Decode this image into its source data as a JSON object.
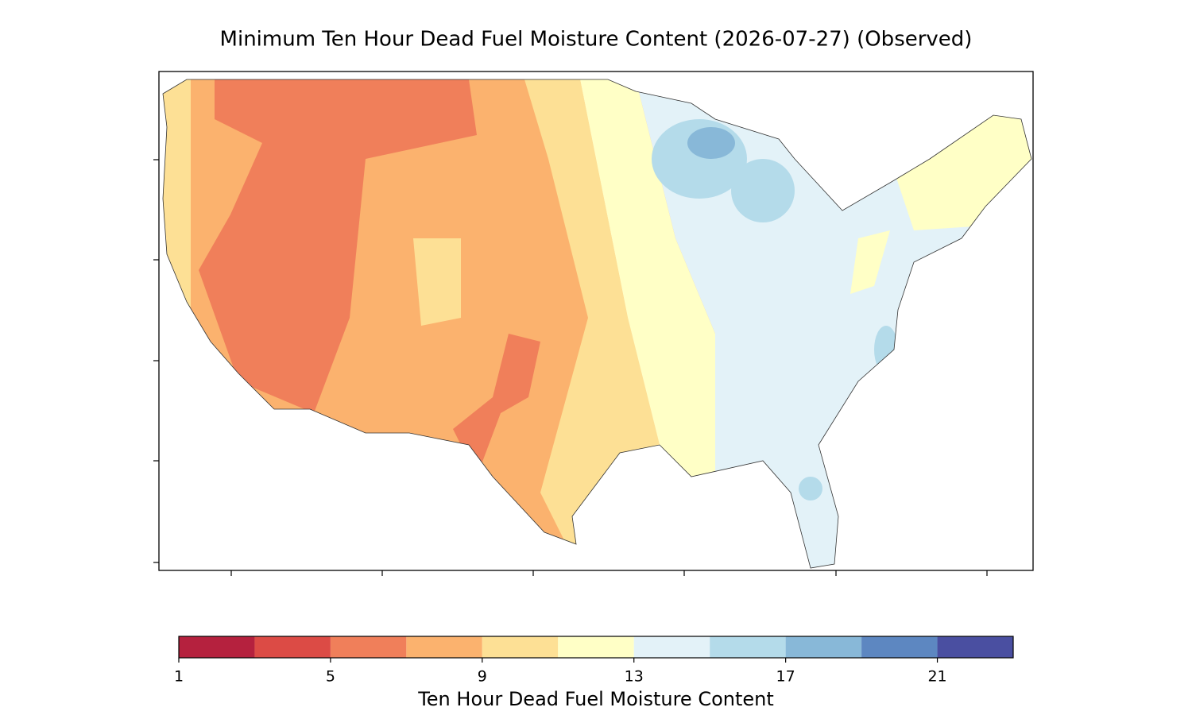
{
  "title": "Minimum Ten Hour Dead Fuel Moisture Content (2026-07-27) (Observed)",
  "colorbar": {
    "bounds": [
      1,
      3,
      5,
      7,
      9,
      11,
      13,
      15,
      17,
      19,
      21,
      23
    ],
    "colors": [
      "#b5213e",
      "#dc4b45",
      "#f07f5a",
      "#fbb26e",
      "#fde095",
      "#ffffc6",
      "#e3f2f8",
      "#b4dbea",
      "#88b8d8",
      "#5d87c1",
      "#4a4fa1"
    ],
    "ticks": [
      1,
      5,
      9,
      13,
      17,
      21
    ],
    "label": "Ten Hour Dead Fuel Moisture Content"
  }
}
